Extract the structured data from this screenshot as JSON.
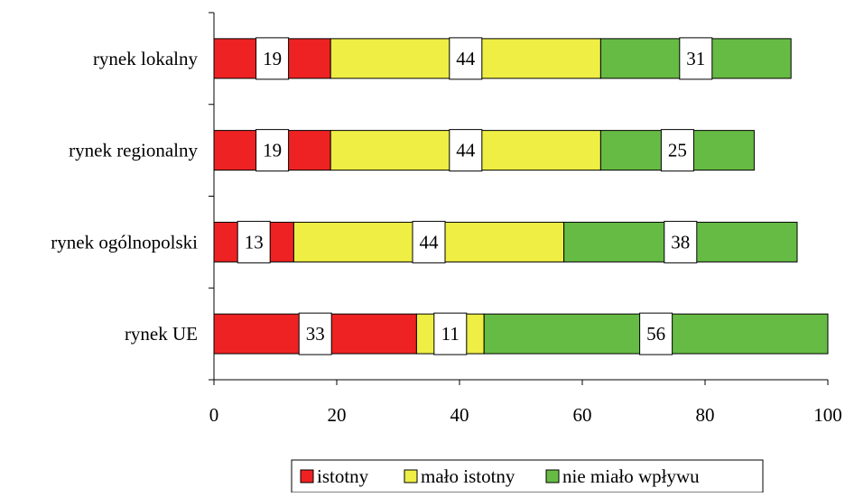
{
  "chart_data": {
    "type": "bar",
    "orientation": "horizontal",
    "stacked": true,
    "categories": [
      "rynek lokalny",
      "rynek regionalny",
      "rynek ogólnopolski",
      "rynek UE"
    ],
    "series": [
      {
        "name": "istotny",
        "color": "#ee2222",
        "values": [
          19,
          19,
          13,
          33
        ],
        "labels": [
          "19",
          "19",
          "13",
          "33"
        ]
      },
      {
        "name": "mało istotny",
        "color": "#eeee44",
        "values": [
          44,
          44,
          44,
          11
        ],
        "labels": [
          "44",
          "44",
          "44",
          "11"
        ]
      },
      {
        "name": "nie miało wpływu",
        "color": "#66bb44",
        "values": [
          31,
          25,
          38,
          56
        ],
        "labels": [
          "31",
          "25",
          "38",
          "56"
        ]
      }
    ],
    "xlim": [
      0,
      100
    ],
    "xticks": [
      "0",
      "20",
      "40",
      "60",
      "80",
      "100"
    ],
    "title": "",
    "xlabel": "",
    "ylabel": "",
    "grid": false,
    "legend": "bottom"
  }
}
